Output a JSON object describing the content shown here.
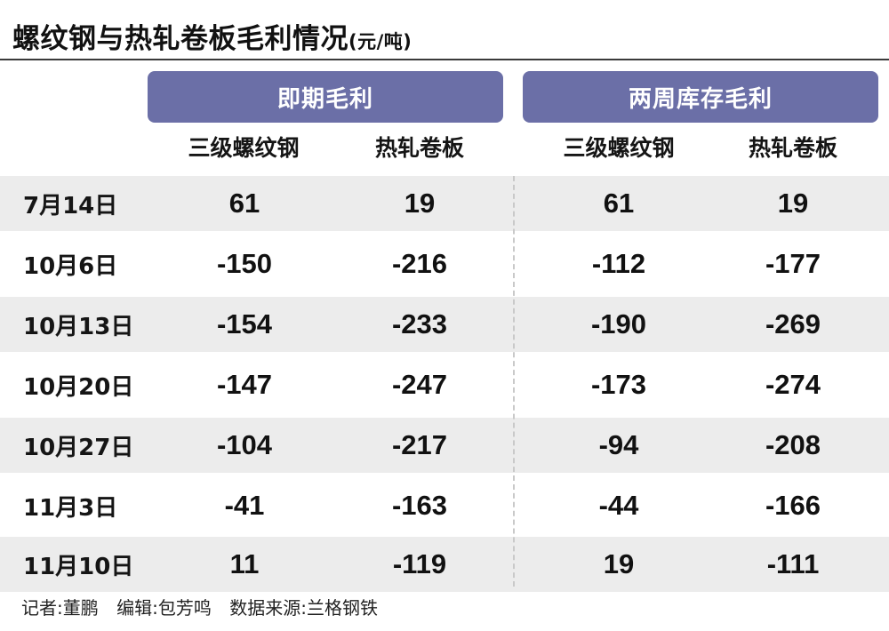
{
  "title": {
    "main": "螺纹钢与热轧卷板毛利情况",
    "unit": "(元/吨)"
  },
  "groups": [
    "即期毛利",
    "两周库存毛利"
  ],
  "sub_columns": [
    "三级螺纹钢",
    "热轧卷板",
    "三级螺纹钢",
    "热轧卷板"
  ],
  "rows": [
    {
      "date": "7月14日",
      "values": [
        "61",
        "19",
        "61",
        "19"
      ]
    },
    {
      "date": "10月6日",
      "values": [
        "-150",
        "-216",
        "-112",
        "-177"
      ]
    },
    {
      "date": "10月13日",
      "values": [
        "-154",
        "-233",
        "-190",
        "-269"
      ]
    },
    {
      "date": "10月20日",
      "values": [
        "-147",
        "-247",
        "-173",
        "-274"
      ]
    },
    {
      "date": "10月27日",
      "values": [
        "-104",
        "-217",
        "-94",
        "-208"
      ]
    },
    {
      "date": "11月3日",
      "values": [
        "-41",
        "-163",
        "-44",
        "-166"
      ]
    },
    {
      "date": "11月10日",
      "values": [
        "11",
        "-119",
        "19",
        "-111"
      ]
    }
  ],
  "footer": {
    "reporter": "记者:董鹏",
    "editor": "编辑:包芳鸣",
    "source": "数据来源:兰格钢铁"
  },
  "colors": {
    "header_bg": "#6b6fa7",
    "row_shade": "#ececec"
  }
}
